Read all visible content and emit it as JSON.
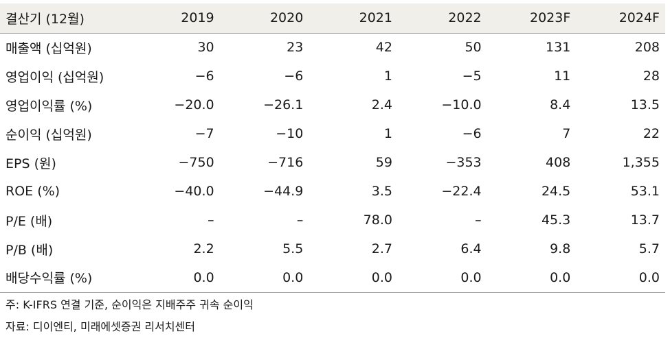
{
  "table": {
    "columns": [
      "결산기 (12월)",
      "2019",
      "2020",
      "2021",
      "2022",
      "2023F",
      "2024F"
    ],
    "rows": [
      {
        "label": "매출액 (십억원)",
        "values": [
          "30",
          "23",
          "42",
          "50",
          "131",
          "208"
        ]
      },
      {
        "label": "영업이익 (십억원)",
        "values": [
          "−6",
          "−6",
          "1",
          "−5",
          "11",
          "28"
        ]
      },
      {
        "label": "영업이익률 (%)",
        "values": [
          "−20.0",
          "−26.1",
          "2.4",
          "−10.0",
          "8.4",
          "13.5"
        ]
      },
      {
        "label": "순이익 (십억원)",
        "values": [
          "−7",
          "−10",
          "1",
          "−6",
          "7",
          "22"
        ]
      },
      {
        "label": "EPS (원)",
        "values": [
          "−750",
          "−716",
          "59",
          "−353",
          "408",
          "1,355"
        ]
      },
      {
        "label": "ROE (%)",
        "values": [
          "−40.0",
          "−44.9",
          "3.5",
          "−22.4",
          "24.5",
          "53.1"
        ]
      },
      {
        "label": "P/E (배)",
        "values": [
          "–",
          "–",
          "78.0",
          "–",
          "45.3",
          "13.7"
        ]
      },
      {
        "label": "P/B (배)",
        "values": [
          "2.2",
          "5.5",
          "2.7",
          "6.4",
          "9.8",
          "5.7"
        ]
      },
      {
        "label": "배당수익률 (%)",
        "values": [
          "0.0",
          "0.0",
          "0.0",
          "0.0",
          "0.0",
          "0.0"
        ]
      }
    ]
  },
  "notes": {
    "footnote": "주: K-IFRS 연결 기준, 순이익은 지배주주 귀속 순이익",
    "source": "자료: 디이엔티, 미래에셋증권 리서치센터"
  }
}
